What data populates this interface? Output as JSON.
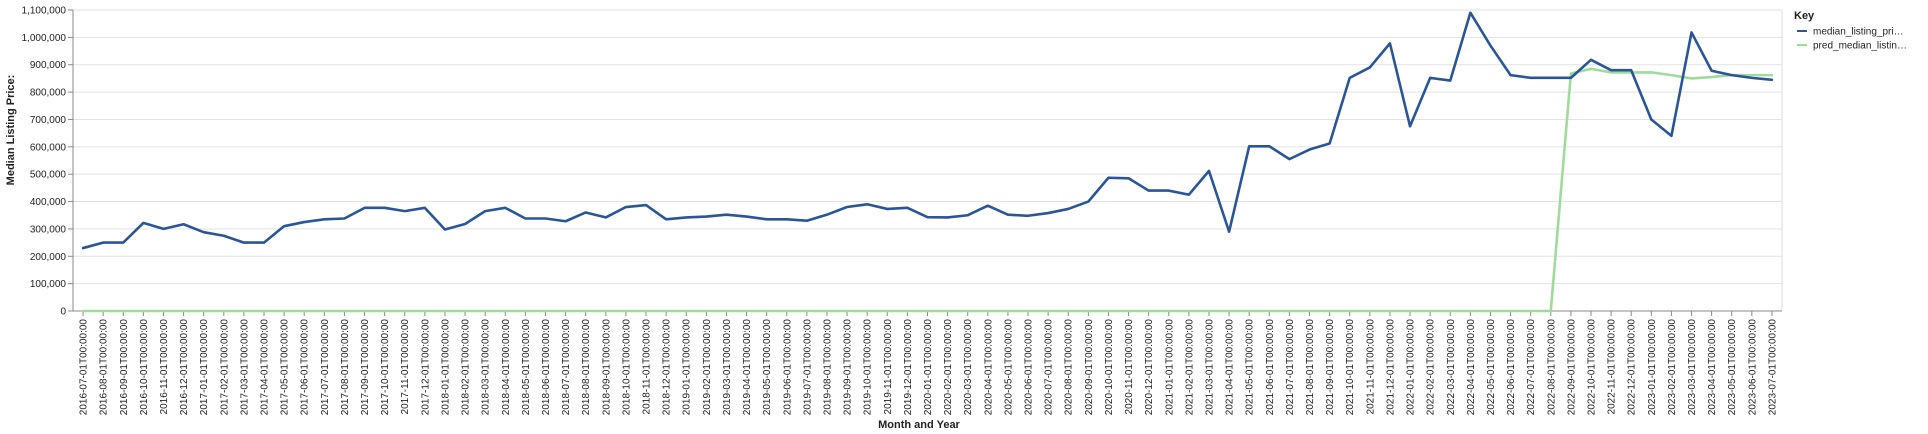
{
  "chart_data": {
    "type": "line",
    "xlabel": "Month and Year",
    "ylabel": "Median Listing Price:",
    "ylim": [
      0,
      1100000
    ],
    "yticks": [
      0,
      100000,
      200000,
      300000,
      400000,
      500000,
      600000,
      700000,
      800000,
      900000,
      1000000,
      1100000
    ],
    "ytick_labels": [
      "0",
      "100,000",
      "200,000",
      "300,000",
      "400,000",
      "500,000",
      "600,000",
      "700,000",
      "800,000",
      "900,000",
      "1,000,000",
      "1,100,000"
    ],
    "grid": true,
    "legend": {
      "title": "Key",
      "placement": "top-right"
    },
    "x": [
      "2016-07-01T00:00:00",
      "2016-08-01T00:00:00",
      "2016-09-01T00:00:00",
      "2016-10-01T00:00:00",
      "2016-11-01T00:00:00",
      "2016-12-01T00:00:00",
      "2017-01-01T00:00:00",
      "2017-02-01T00:00:00",
      "2017-03-01T00:00:00",
      "2017-04-01T00:00:00",
      "2017-05-01T00:00:00",
      "2017-06-01T00:00:00",
      "2017-07-01T00:00:00",
      "2017-08-01T00:00:00",
      "2017-09-01T00:00:00",
      "2017-10-01T00:00:00",
      "2017-11-01T00:00:00",
      "2017-12-01T00:00:00",
      "2018-01-01T00:00:00",
      "2018-02-01T00:00:00",
      "2018-03-01T00:00:00",
      "2018-04-01T00:00:00",
      "2018-05-01T00:00:00",
      "2018-06-01T00:00:00",
      "2018-07-01T00:00:00",
      "2018-08-01T00:00:00",
      "2018-09-01T00:00:00",
      "2018-10-01T00:00:00",
      "2018-11-01T00:00:00",
      "2018-12-01T00:00:00",
      "2019-01-01T00:00:00",
      "2019-02-01T00:00:00",
      "2019-03-01T00:00:00",
      "2019-04-01T00:00:00",
      "2019-05-01T00:00:00",
      "2019-06-01T00:00:00",
      "2019-07-01T00:00:00",
      "2019-08-01T00:00:00",
      "2019-09-01T00:00:00",
      "2019-10-01T00:00:00",
      "2019-11-01T00:00:00",
      "2019-12-01T00:00:00",
      "2020-01-01T00:00:00",
      "2020-02-01T00:00:00",
      "2020-03-01T00:00:00",
      "2020-04-01T00:00:00",
      "2020-05-01T00:00:00",
      "2020-06-01T00:00:00",
      "2020-07-01T00:00:00",
      "2020-08-01T00:00:00",
      "2020-09-01T00:00:00",
      "2020-10-01T00:00:00",
      "2020-11-01T00:00:00",
      "2020-12-01T00:00:00",
      "2021-01-01T00:00:00",
      "2021-02-01T00:00:00",
      "2021-03-01T00:00:00",
      "2021-04-01T00:00:00",
      "2021-05-01T00:00:00",
      "2021-06-01T00:00:00",
      "2021-07-01T00:00:00",
      "2021-08-01T00:00:00",
      "2021-09-01T00:00:00",
      "2021-10-01T00:00:00",
      "2021-11-01T00:00:00",
      "2021-12-01T00:00:00",
      "2022-01-01T00:00:00",
      "2022-02-01T00:00:00",
      "2022-03-01T00:00:00",
      "2022-04-01T00:00:00",
      "2022-05-01T00:00:00",
      "2022-06-01T00:00:00",
      "2022-07-01T00:00:00",
      "2022-08-01T00:00:00",
      "2022-09-01T00:00:00",
      "2022-10-01T00:00:00",
      "2022-11-01T00:00:00",
      "2022-12-01T00:00:00",
      "2023-01-01T00:00:00",
      "2023-02-01T00:00:00",
      "2023-03-01T00:00:00",
      "2023-04-01T00:00:00",
      "2023-05-01T00:00:00",
      "2023-06-01T00:00:00",
      "2023-07-01T00:00:00"
    ],
    "series": [
      {
        "name": "median_listing_pri…",
        "color": "#2a5599",
        "values": [
          230000,
          250000,
          250000,
          322000,
          300000,
          317000,
          288000,
          275000,
          250000,
          250000,
          310000,
          325000,
          335000,
          338000,
          377000,
          377000,
          365000,
          377000,
          298000,
          318000,
          365000,
          377000,
          338000,
          338000,
          328000,
          360000,
          342000,
          380000,
          387000,
          335000,
          342000,
          345000,
          352000,
          345000,
          335000,
          335000,
          330000,
          352000,
          380000,
          390000,
          373000,
          377000,
          343000,
          342000,
          350000,
          385000,
          352000,
          348000,
          358000,
          373000,
          400000,
          487000,
          485000,
          440000,
          440000,
          425000,
          512000,
          290000,
          602000,
          602000,
          555000,
          590000,
          612000,
          852000,
          890000,
          978000,
          675000,
          852000,
          842000,
          1090000,
          970000,
          862000,
          852000,
          852000,
          852000,
          918000,
          880000,
          880000,
          700000,
          640000,
          1018000,
          878000,
          862000,
          852000,
          845000
        ]
      },
      {
        "name": "pred_median_listin…",
        "color": "#9fdb9a",
        "values": [
          0,
          0,
          0,
          0,
          0,
          0,
          0,
          0,
          0,
          0,
          0,
          0,
          0,
          0,
          0,
          0,
          0,
          0,
          0,
          0,
          0,
          0,
          0,
          0,
          0,
          0,
          0,
          0,
          0,
          0,
          0,
          0,
          0,
          0,
          0,
          0,
          0,
          0,
          0,
          0,
          0,
          0,
          0,
          0,
          0,
          0,
          0,
          0,
          0,
          0,
          0,
          0,
          0,
          0,
          0,
          0,
          0,
          0,
          0,
          0,
          0,
          0,
          0,
          0,
          0,
          0,
          0,
          0,
          0,
          0,
          0,
          0,
          0,
          0,
          868000,
          885000,
          872000,
          872000,
          872000,
          862000,
          850000,
          855000,
          862000,
          862000,
          862000
        ]
      }
    ]
  }
}
